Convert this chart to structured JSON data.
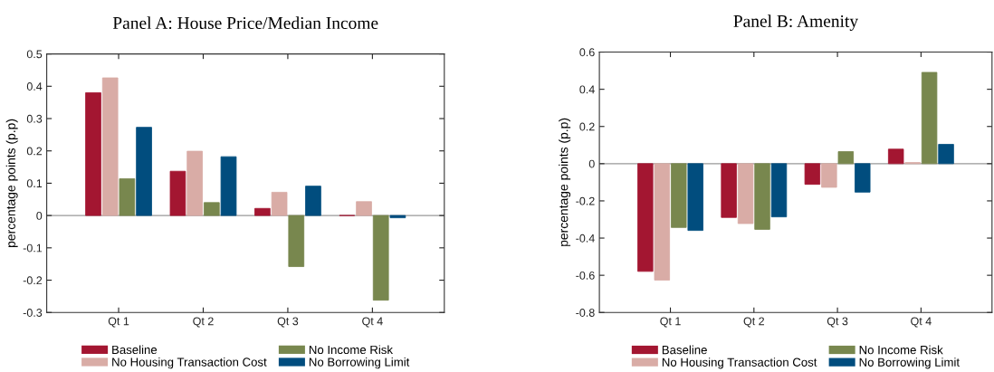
{
  "chart_data": [
    {
      "type": "bar",
      "title": "Panel A: House Price/Median Income",
      "ylabel": "percentage points (p.p)",
      "categories": [
        "Qt 1",
        "Qt 2",
        "Qt 3",
        "Qt 4"
      ],
      "ylim": [
        -0.3,
        0.5
      ],
      "yticks": [
        -0.3,
        -0.2,
        -0.1,
        0,
        0.1,
        0.2,
        0.3,
        0.4,
        0.5
      ],
      "legend": "bottom",
      "grid": false,
      "ref_lines": [
        {
          "axis": "y",
          "value": 0,
          "color": "#999999"
        }
      ],
      "series": [
        {
          "name": "Baseline",
          "color": "#a31631",
          "values": [
            0.38,
            0.137,
            0.022,
            0.0
          ]
        },
        {
          "name": "No Housing Transaction Cost",
          "color": "#d9aca6",
          "values": [
            0.426,
            0.199,
            0.072,
            0.043
          ]
        },
        {
          "name": "No Income Risk",
          "color": "#78874e",
          "values": [
            0.114,
            0.04,
            -0.158,
            -0.262
          ]
        },
        {
          "name": "No Borrowing Limit",
          "color": "#014d7e",
          "values": [
            0.273,
            0.182,
            0.091,
            -0.007
          ]
        }
      ]
    },
    {
      "type": "bar",
      "title": "Panel B: Amenity",
      "ylabel": "percentage points (p.p)",
      "categories": [
        "Qt 1",
        "Qt 2",
        "Qt 3",
        "Qt 4"
      ],
      "ylim": [
        -0.8,
        0.6
      ],
      "yticks": [
        -0.8,
        -0.6,
        -0.4,
        -0.2,
        0,
        0.2,
        0.4,
        0.6
      ],
      "legend": "bottom",
      "grid": false,
      "ref_lines": [
        {
          "axis": "y",
          "value": 0,
          "color": "#999999"
        }
      ],
      "series": [
        {
          "name": "Baseline",
          "color": "#a31631",
          "values": [
            -0.579,
            -0.289,
            -0.111,
            0.078
          ]
        },
        {
          "name": "No Housing Transaction Cost",
          "color": "#d9aca6",
          "values": [
            -0.626,
            -0.322,
            -0.127,
            0.006
          ]
        },
        {
          "name": "No Income Risk",
          "color": "#78874e",
          "values": [
            -0.343,
            -0.353,
            0.065,
            0.491
          ]
        },
        {
          "name": "No Borrowing Limit",
          "color": "#014d7e",
          "values": [
            -0.359,
            -0.286,
            -0.153,
            0.104
          ]
        }
      ]
    }
  ]
}
